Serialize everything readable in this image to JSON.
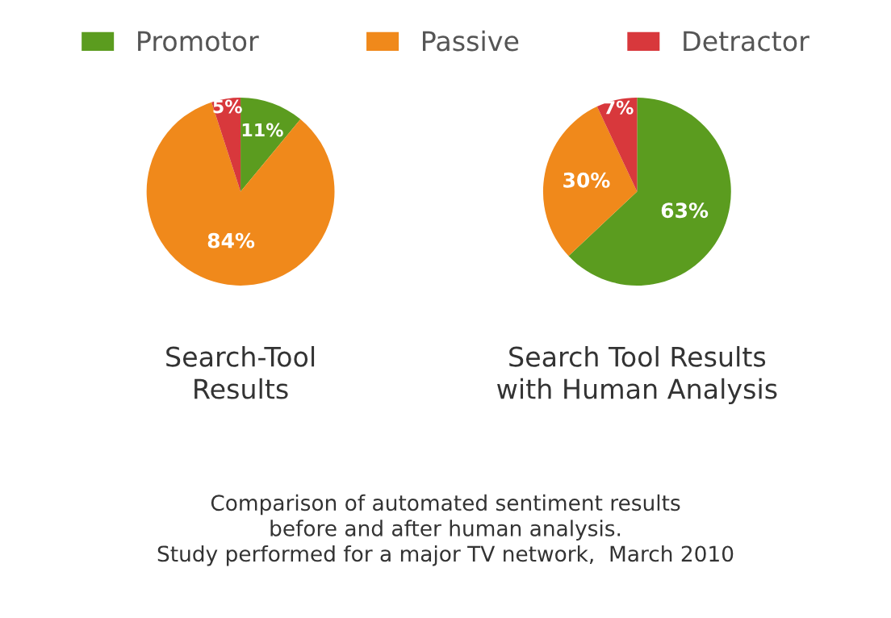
{
  "chart_data": [
    {
      "type": "pie",
      "title": "Search-Tool\nResults",
      "categories": [
        "Promotor",
        "Passive",
        "Detractor"
      ],
      "values": [
        11,
        84,
        5
      ],
      "value_labels": [
        "11%",
        "84%",
        "5%"
      ],
      "colors": [
        "#5b9c1f",
        "#f0891b",
        "#d8383c"
      ],
      "legend": "top",
      "annotations": [
        "Comparison of automated sentiment results\nbefore and after human analysis.\nStudy performed for a major TV network,  March 2010"
      ]
    },
    {
      "type": "pie",
      "title": "Search Tool Results\nwith Human Analysis",
      "categories": [
        null,
        null,
        null
      ],
      "values": [
        63,
        30,
        7
      ],
      "value_labels": [
        "63%",
        "30%",
        "7%"
      ],
      "colors": [
        "#5b9c1f",
        "#f0891b",
        "#d8383c"
      ]
    }
  ]
}
